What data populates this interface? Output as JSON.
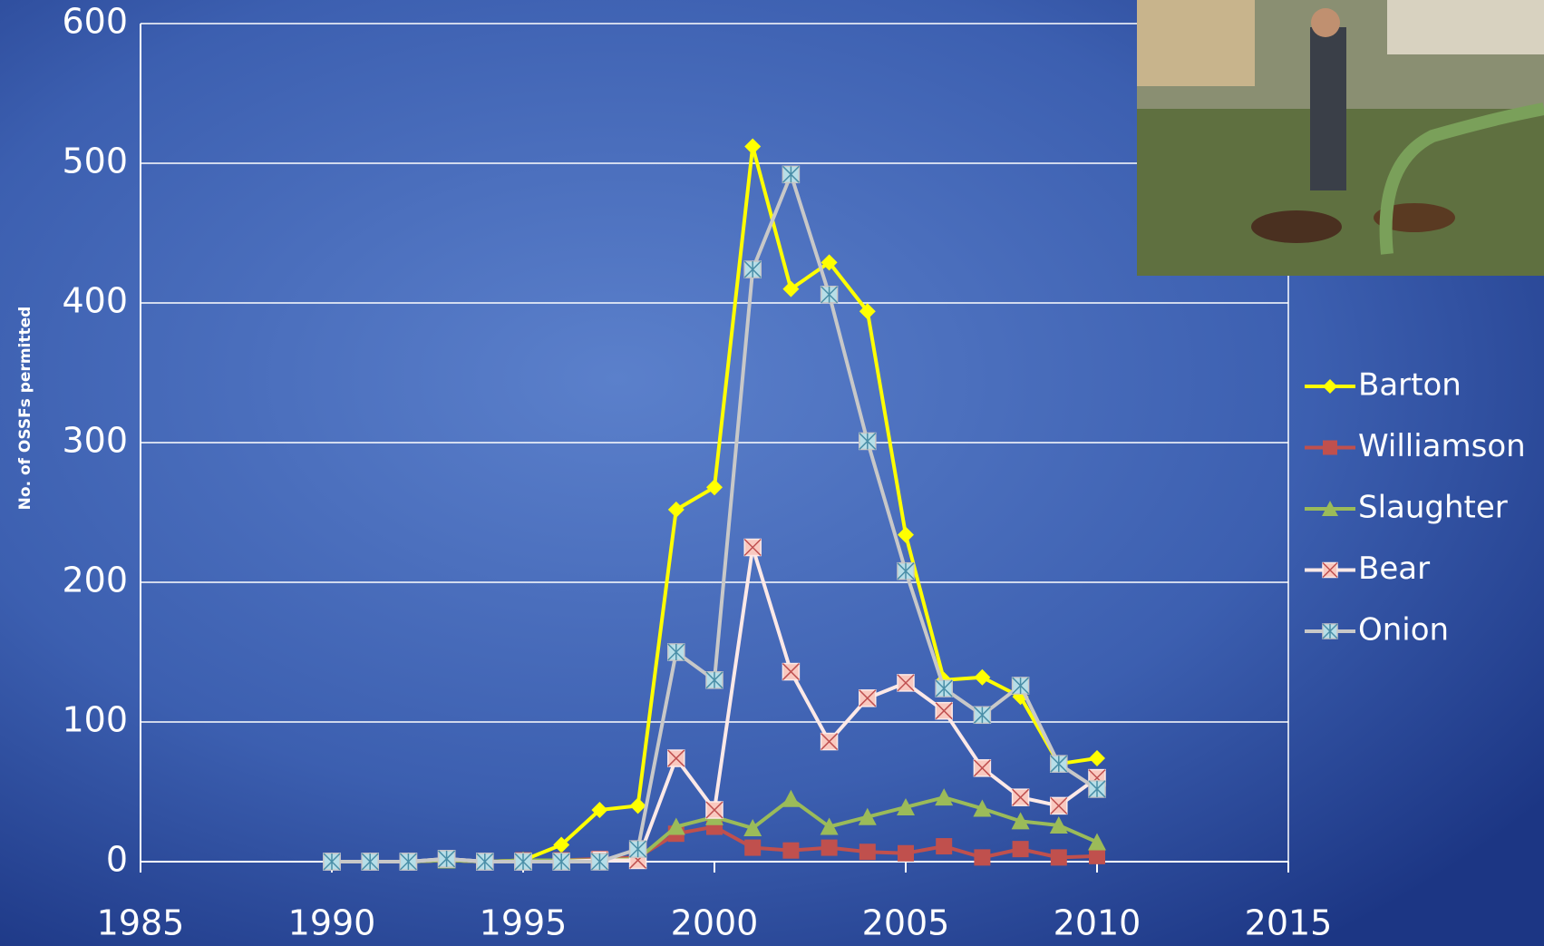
{
  "chart_data": {
    "type": "line",
    "y_label": "No. of OSSFs permitted",
    "x": [
      1990,
      1991,
      1992,
      1993,
      1994,
      1995,
      1996,
      1997,
      1998,
      1999,
      2000,
      2001,
      2002,
      2003,
      2004,
      2005,
      2006,
      2007,
      2008,
      2009,
      2010
    ],
    "series": [
      {
        "name": "Barton",
        "color": "#ffff00",
        "marker": "diamond",
        "marker_fill": "#ffff00",
        "values": [
          0,
          0,
          0,
          1,
          0,
          1,
          12,
          37,
          40,
          252,
          268,
          512,
          410,
          429,
          394,
          234,
          130,
          132,
          118,
          70,
          74
        ]
      },
      {
        "name": "Williamson",
        "color": "#c0504d",
        "marker": "square",
        "marker_fill": "#c0504d",
        "values": [
          0,
          0,
          0,
          1,
          0,
          1,
          1,
          2,
          3,
          20,
          25,
          10,
          8,
          10,
          7,
          6,
          11,
          3,
          9,
          3,
          4
        ]
      },
      {
        "name": "Slaughter",
        "color": "#9bbb59",
        "marker": "triangle",
        "marker_fill": "#9bbb59",
        "values": [
          0,
          0,
          0,
          1,
          0,
          1,
          1,
          1,
          2,
          25,
          32,
          24,
          45,
          25,
          32,
          39,
          46,
          38,
          29,
          26,
          14
        ]
      },
      {
        "name": "Bear",
        "color": "#fde9e7",
        "marker": "x-square",
        "marker_fill": "#f9c9c0",
        "values": [
          0,
          0,
          0,
          2,
          0,
          0,
          0,
          1,
          1,
          74,
          37,
          225,
          136,
          86,
          117,
          128,
          108,
          67,
          46,
          40,
          60
        ]
      },
      {
        "name": "Onion",
        "color": "#c8c8c8",
        "marker": "star-square",
        "marker_fill": "#b7dee8",
        "values": [
          0,
          0,
          0,
          2,
          0,
          0,
          0,
          0,
          9,
          150,
          130,
          424,
          492,
          406,
          301,
          208,
          124,
          105,
          126,
          70,
          52
        ]
      }
    ],
    "xlim": [
      1985,
      2015
    ],
    "xticks": [
      1985,
      1990,
      1995,
      2000,
      2005,
      2010,
      2015
    ],
    "ylim": [
      0,
      600
    ],
    "yticks": [
      0,
      100,
      200,
      300,
      400,
      500,
      600
    ],
    "grid": true,
    "legend": "right"
  }
}
